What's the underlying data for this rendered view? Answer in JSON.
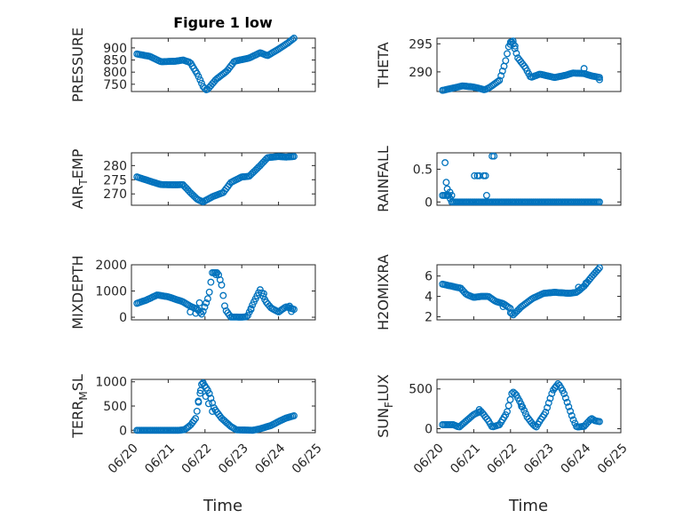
{
  "figure": {
    "title": "Figure 1 low",
    "marker_color": "#0072bd"
  },
  "x_axis": {
    "label": "Time",
    "ticks": [
      "06/20",
      "06/21",
      "06/22",
      "06/23",
      "06/24",
      "06/25"
    ],
    "lim": [
      0,
      5
    ],
    "data_range": [
      0.15,
      4.42
    ]
  },
  "chart_data": [
    {
      "type": "scatter",
      "ylabel": "PRESSURE",
      "ylim": [
        720,
        940
      ],
      "yticks": [
        750,
        800,
        850,
        900
      ],
      "grid": true,
      "anchors": [
        [
          0.15,
          875
        ],
        [
          0.5,
          865
        ],
        [
          0.8,
          843
        ],
        [
          1.2,
          845
        ],
        [
          1.4,
          850
        ],
        [
          1.6,
          840
        ],
        [
          1.8,
          790
        ],
        [
          1.95,
          740
        ],
        [
          2.05,
          725
        ],
        [
          2.3,
          770
        ],
        [
          2.6,
          805
        ],
        [
          2.8,
          845
        ],
        [
          3.2,
          858
        ],
        [
          3.5,
          880
        ],
        [
          3.7,
          868
        ],
        [
          4.0,
          895
        ],
        [
          4.25,
          920
        ],
        [
          4.42,
          940
        ]
      ],
      "extras": []
    },
    {
      "type": "scatter",
      "ylabel": "THETA",
      "ylim": [
        286.5,
        296
      ],
      "yticks": [
        290,
        295
      ],
      "grid": true,
      "anchors": [
        [
          0.15,
          286.7
        ],
        [
          0.5,
          287.2
        ],
        [
          0.7,
          287.5
        ],
        [
          1.0,
          287.3
        ],
        [
          1.3,
          286.8
        ],
        [
          1.45,
          287.3
        ],
        [
          1.7,
          288.5
        ],
        [
          1.85,
          291.5
        ],
        [
          1.95,
          294.5
        ],
        [
          2.05,
          295.5
        ],
        [
          2.2,
          292.5
        ],
        [
          2.4,
          290.8
        ],
        [
          2.55,
          289.0
        ],
        [
          2.8,
          289.6
        ],
        [
          3.2,
          289.0
        ],
        [
          3.5,
          289.4
        ],
        [
          3.7,
          289.8
        ],
        [
          4.0,
          289.7
        ],
        [
          4.2,
          289.3
        ],
        [
          4.42,
          289.0
        ]
      ],
      "extras": [
        [
          2.0,
          295.3
        ],
        [
          2.07,
          295.5
        ],
        [
          2.12,
          294.6
        ],
        [
          4.0,
          290.6
        ],
        [
          4.42,
          288.6
        ]
      ]
    },
    {
      "type": "scatter",
      "ylabel": "AIR_TEMP",
      "ylim": [
        266,
        284.5
      ],
      "yticks": [
        270,
        275,
        280
      ],
      "grid": true,
      "anchors": [
        [
          0.15,
          276.0
        ],
        [
          0.5,
          274.5
        ],
        [
          0.8,
          273.3
        ],
        [
          1.2,
          273.2
        ],
        [
          1.4,
          273.3
        ],
        [
          1.6,
          270.5
        ],
        [
          1.8,
          268.0
        ],
        [
          1.95,
          267.2
        ],
        [
          2.2,
          269.0
        ],
        [
          2.5,
          270.5
        ],
        [
          2.7,
          274.0
        ],
        [
          3.0,
          276.0
        ],
        [
          3.2,
          276.2
        ],
        [
          3.5,
          280.0
        ],
        [
          3.7,
          282.8
        ],
        [
          4.0,
          283.2
        ],
        [
          4.2,
          283.0
        ],
        [
          4.42,
          283.2
        ]
      ],
      "extras": []
    },
    {
      "type": "scatter",
      "ylabel": "RAINFALL",
      "ylim": [
        -0.05,
        0.75
      ],
      "yticks": [
        0,
        0.5
      ],
      "grid": true,
      "anchors": [
        [
          0.15,
          0.1
        ],
        [
          0.32,
          0.1
        ],
        [
          0.4,
          0.0
        ],
        [
          2.0,
          0.0
        ],
        [
          4.42,
          0.0
        ]
      ],
      "extras": [
        [
          0.22,
          0.6
        ],
        [
          0.25,
          0.3
        ],
        [
          0.28,
          0.2
        ],
        [
          0.3,
          0.1
        ],
        [
          0.35,
          0.15
        ],
        [
          0.4,
          0.1
        ],
        [
          1.02,
          0.4
        ],
        [
          1.1,
          0.4
        ],
        [
          1.15,
          0.4
        ],
        [
          1.27,
          0.4
        ],
        [
          1.32,
          0.4
        ],
        [
          1.35,
          0.1
        ],
        [
          1.5,
          0.7
        ],
        [
          1.55,
          0.7
        ]
      ]
    },
    {
      "type": "scatter",
      "ylabel": "MIXDEPTH",
      "ylim": [
        -100,
        2000
      ],
      "yticks": [
        0,
        1000,
        2000
      ],
      "grid": true,
      "anchors": [
        [
          0.15,
          530
        ],
        [
          0.4,
          650
        ],
        [
          0.7,
          850
        ],
        [
          1.0,
          780
        ],
        [
          1.4,
          590
        ],
        [
          1.6,
          420
        ],
        [
          1.8,
          300
        ],
        [
          1.92,
          100
        ],
        [
          2.0,
          420
        ],
        [
          2.1,
          800
        ],
        [
          2.2,
          1700
        ],
        [
          2.35,
          1700
        ],
        [
          2.45,
          1250
        ],
        [
          2.55,
          300
        ],
        [
          2.7,
          10
        ],
        [
          3.0,
          5
        ],
        [
          3.15,
          20
        ],
        [
          3.3,
          500
        ],
        [
          3.5,
          1050
        ],
        [
          3.65,
          600
        ],
        [
          3.8,
          350
        ],
        [
          4.0,
          200
        ],
        [
          4.2,
          400
        ],
        [
          4.42,
          300
        ]
      ],
      "extras": [
        [
          1.6,
          200
        ],
        [
          1.75,
          150
        ],
        [
          1.85,
          550
        ],
        [
          2.3,
          1620
        ],
        [
          3.25,
          300
        ],
        [
          3.6,
          900
        ],
        [
          4.3,
          420
        ],
        [
          4.35,
          220
        ]
      ]
    },
    {
      "type": "scatter",
      "ylabel": "H2OMIXRA",
      "ylim": [
        1.7,
        7.1
      ],
      "yticks": [
        2,
        4,
        6
      ],
      "grid": true,
      "anchors": [
        [
          0.15,
          5.2
        ],
        [
          0.4,
          5.0
        ],
        [
          0.65,
          4.8
        ],
        [
          0.8,
          4.2
        ],
        [
          1.0,
          3.9
        ],
        [
          1.2,
          4.0
        ],
        [
          1.4,
          4.0
        ],
        [
          1.6,
          3.5
        ],
        [
          1.8,
          3.3
        ],
        [
          2.0,
          2.8
        ],
        [
          2.05,
          2.1
        ],
        [
          2.3,
          3.0
        ],
        [
          2.6,
          3.8
        ],
        [
          2.9,
          4.3
        ],
        [
          3.2,
          4.4
        ],
        [
          3.6,
          4.3
        ],
        [
          3.8,
          4.4
        ],
        [
          4.0,
          5.0
        ],
        [
          4.2,
          5.9
        ],
        [
          4.42,
          6.8
        ]
      ],
      "extras": [
        [
          1.8,
          3.0
        ],
        [
          2.0,
          2.4
        ],
        [
          3.85,
          4.9
        ],
        [
          4.05,
          5.3
        ]
      ]
    },
    {
      "type": "scatter",
      "ylabel": "TERR_MSL",
      "ylim": [
        -50,
        1050
      ],
      "yticks": [
        0,
        500,
        1000
      ],
      "grid": true,
      "anchors": [
        [
          0.15,
          0
        ],
        [
          1.0,
          0
        ],
        [
          1.3,
          0
        ],
        [
          1.45,
          15
        ],
        [
          1.6,
          100
        ],
        [
          1.75,
          250
        ],
        [
          1.92,
          1000
        ],
        [
          2.1,
          800
        ],
        [
          2.25,
          450
        ],
        [
          2.45,
          250
        ],
        [
          2.7,
          80
        ],
        [
          2.85,
          10
        ],
        [
          3.3,
          0
        ],
        [
          3.5,
          30
        ],
        [
          3.8,
          100
        ],
        [
          4.0,
          180
        ],
        [
          4.2,
          250
        ],
        [
          4.42,
          300
        ]
      ],
      "extras": [
        [
          1.82,
          600
        ],
        [
          1.88,
          820
        ],
        [
          1.95,
          980
        ],
        [
          2.02,
          700
        ],
        [
          2.1,
          550
        ],
        [
          2.2,
          390
        ]
      ]
    },
    {
      "type": "scatter",
      "ylabel": "SUN_FLUX",
      "ylim": [
        -50,
        620
      ],
      "yticks": [
        0,
        500
      ],
      "grid": true,
      "anchors": [
        [
          0.15,
          50
        ],
        [
          0.45,
          50
        ],
        [
          0.6,
          20
        ],
        [
          0.8,
          100
        ],
        [
          1.0,
          180
        ],
        [
          1.2,
          220
        ],
        [
          1.4,
          100
        ],
        [
          1.5,
          20
        ],
        [
          1.7,
          50
        ],
        [
          1.9,
          200
        ],
        [
          2.05,
          470
        ],
        [
          2.15,
          430
        ],
        [
          2.3,
          300
        ],
        [
          2.45,
          150
        ],
        [
          2.6,
          60
        ],
        [
          2.7,
          20
        ],
        [
          2.8,
          100
        ],
        [
          2.95,
          200
        ],
        [
          3.15,
          480
        ],
        [
          3.3,
          570
        ],
        [
          3.45,
          450
        ],
        [
          3.55,
          320
        ],
        [
          3.7,
          120
        ],
        [
          3.8,
          20
        ],
        [
          4.0,
          30
        ],
        [
          4.2,
          130
        ],
        [
          4.3,
          100
        ],
        [
          4.42,
          90
        ]
      ],
      "extras": [
        [
          1.15,
          240
        ],
        [
          2.3,
          280
        ],
        [
          3.22,
          520
        ]
      ]
    }
  ]
}
